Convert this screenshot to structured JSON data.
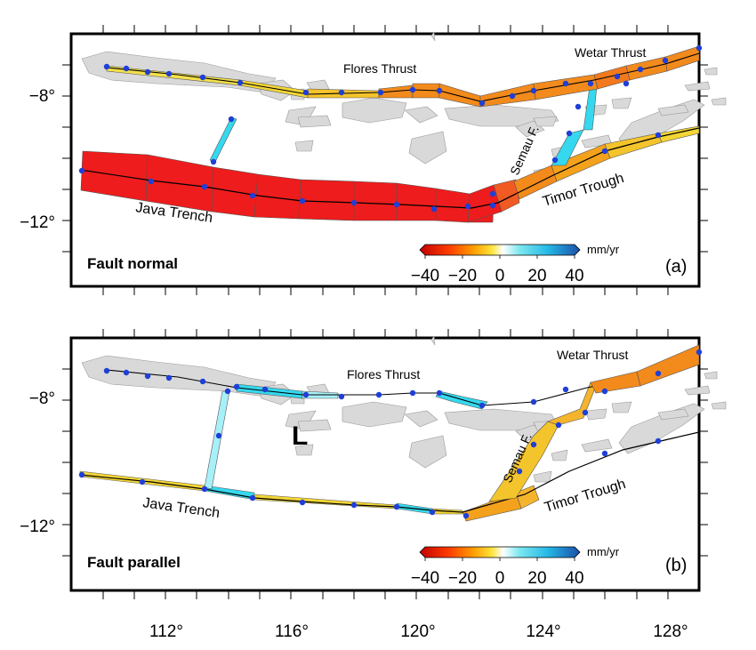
{
  "x_ticks": [
    "112°",
    "116°",
    "120°",
    "124°",
    "128°"
  ],
  "panels": [
    {
      "id": "a",
      "y_ticks": [
        "−8°",
        "−12°"
      ],
      "fault_labels": [
        "Flores Thrust",
        "Wetar Thrust",
        "Semau F.",
        "Java Trench",
        "Timor Trough"
      ],
      "component_title": "Fault normal",
      "panel_letter": "(a)",
      "colorbar": {
        "unit": "mm/yr",
        "ticks": [
          "−40",
          "−20",
          "0",
          "20",
          "40"
        ]
      }
    },
    {
      "id": "b",
      "y_ticks": [
        "−8°",
        "−12°"
      ],
      "fault_labels": [
        "Flores Thrust",
        "Wetar Thrust",
        "Semau F.",
        "Java Trench",
        "Timor Trough"
      ],
      "component_title": "Fault parallel",
      "panel_letter": "(b)",
      "annotation": "L",
      "colorbar": {
        "unit": "mm/yr",
        "ticks": [
          "−40",
          "−20",
          "0",
          "20",
          "40"
        ]
      }
    }
  ],
  "colors": {
    "land": "#d9d9d9",
    "station": "#1f3fd6",
    "red": "#ee1c1c",
    "orange": "#f28a1c",
    "yellow": "#f4d634",
    "cyan": "#35d8ee"
  }
}
